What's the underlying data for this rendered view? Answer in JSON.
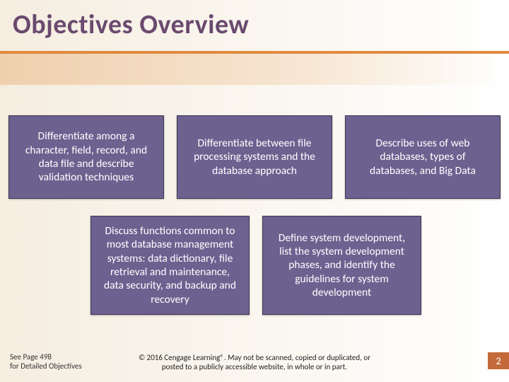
{
  "title": "Objectives Overview",
  "accent_line_color": "#e08a3f",
  "card_bg": "#6d6190",
  "card_border": "#3c3552",
  "card_text_color": "#ffffff",
  "row1": [
    "Differentiate among a character, field, record, and data file and describe validation techniques",
    "Differentiate between file processing systems and the database approach",
    "Describe uses of web databases, types of databases, and Big Data"
  ],
  "row2": [
    "Discuss functions common to most database management systems: data dictionary, file retrieval and maintenance, data security, and backup and recovery",
    "Define system development, list the system development phases, and identify the guidelines for system development"
  ],
  "footer_left_line1": "See Page 498",
  "footer_left_line2": "for Detailed Objectives",
  "footer_center": "© 2016 Cengage Learning®. May not be scanned, copied or duplicated, or posted to a publicly accessible website, in whole or in part.",
  "page_number": "2",
  "page_badge_bg": "#c46a3a"
}
